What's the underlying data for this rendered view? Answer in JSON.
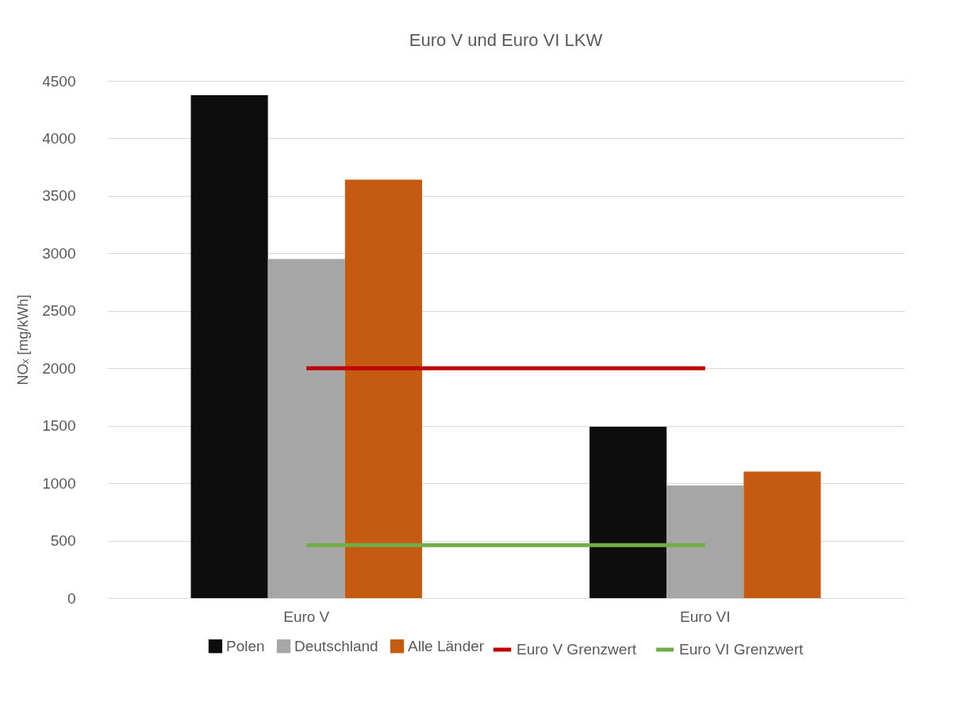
{
  "chart_data": {
    "type": "bar",
    "title": "Euro V und Euro VI LKW",
    "ylabel": "NOₓ [mg/kWh]",
    "categories": [
      "Euro V",
      "Euro VI"
    ],
    "series": [
      {
        "name": "Polen",
        "color": "#0d0d0d",
        "values": [
          4375,
          1490
        ]
      },
      {
        "name": "Deutschland",
        "color": "#a6a6a6",
        "values": [
          2950,
          980
        ]
      },
      {
        "name": "Alle Länder",
        "color": "#c55a11",
        "values": [
          3640,
          1100
        ]
      },
      {
        "name": "Euro V Grenzwert",
        "type": "line",
        "color": "#c00000",
        "values": [
          2000,
          2000
        ]
      },
      {
        "name": "Euro VI Grenzwert",
        "type": "line",
        "color": "#70ad47",
        "values": [
          460,
          460
        ]
      }
    ],
    "ylim": [
      0,
      4500
    ],
    "yticks": [
      0,
      500,
      1000,
      1500,
      2000,
      2500,
      3000,
      3500,
      4000,
      4500
    ],
    "grid": "y",
    "legend": "bottom"
  }
}
